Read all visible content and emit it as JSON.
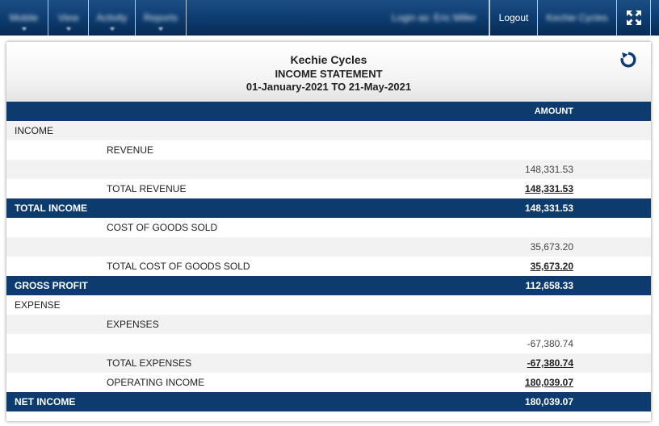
{
  "nav": {
    "menu_items": [
      {
        "label": "Mobile"
      },
      {
        "label": "View"
      },
      {
        "label": "Activity"
      },
      {
        "label": "Reports"
      }
    ],
    "user_label": "Login as: Eric Miller",
    "logout_label": "Logout",
    "company_label": "Kechie Cycles",
    "expand_icon": "expand-icon"
  },
  "report": {
    "company": "Kechie Cycles",
    "title": "INCOME STATEMENT",
    "date_range": "01-January-2021 TO 21-May-2021",
    "refresh_icon": "refresh-icon",
    "amount_header": "AMOUNT",
    "rows": [
      {
        "label": "INCOME",
        "amount": ""
      },
      {
        "label": "REVENUE",
        "amount": ""
      },
      {
        "label": "",
        "amount": "148,331.53"
      },
      {
        "label": "TOTAL REVENUE",
        "amount": "148,331.53"
      },
      {
        "label": "TOTAL INCOME",
        "amount": "148,331.53"
      },
      {
        "label": "COST OF GOODS SOLD",
        "amount": ""
      },
      {
        "label": "",
        "amount": "35,673.20"
      },
      {
        "label": "TOTAL COST OF GOODS SOLD",
        "amount": "35,673.20"
      },
      {
        "label": "GROSS PROFIT",
        "amount": "112,658.33"
      },
      {
        "label": "EXPENSE",
        "amount": ""
      },
      {
        "label": "EXPENSES",
        "amount": ""
      },
      {
        "label": "",
        "amount": "-67,380.74"
      },
      {
        "label": "TOTAL EXPENSES",
        "amount": "-67,380.74"
      },
      {
        "label": "OPERATING INCOME",
        "amount": "180,039.07"
      },
      {
        "label": "NET INCOME",
        "amount": "180,039.07"
      }
    ]
  },
  "colors": {
    "navy": "#0d3b6e",
    "row_alt": "#f2f2f2"
  }
}
